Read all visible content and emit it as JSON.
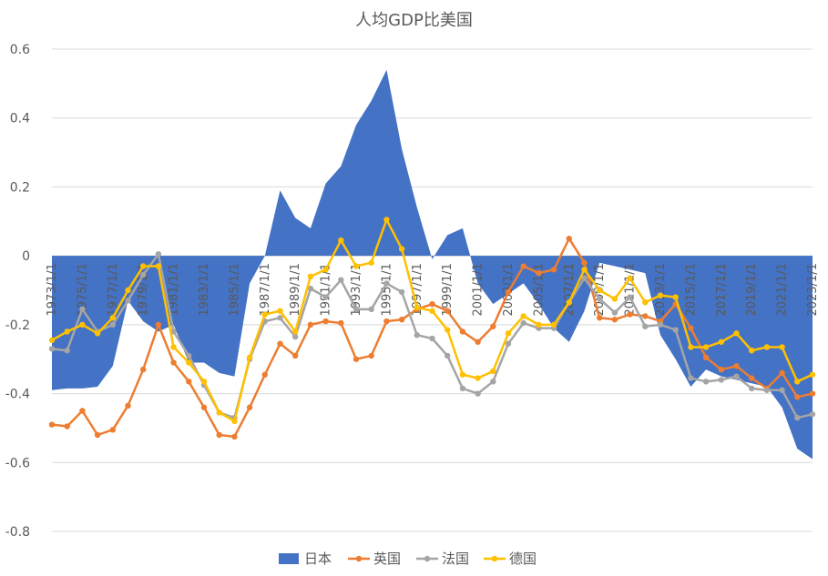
{
  "chart_data": {
    "type": "area",
    "title": "人均GDP比美国",
    "ylim": [
      -0.8,
      0.6
    ],
    "yticks": [
      -0.8,
      -0.6,
      -0.4,
      -0.2,
      0,
      0.2,
      0.4,
      0.6
    ],
    "x": [
      "1973/1/1",
      "1974/1/1",
      "1975/1/1",
      "1976/1/1",
      "1977/1/1",
      "1978/1/1",
      "1979/1/1",
      "1980/1/1",
      "1981/1/1",
      "1982/1/1",
      "1983/1/1",
      "1984/1/1",
      "1985/1/1",
      "1986/1/1",
      "1987/1/1",
      "1988/1/1",
      "1989/1/1",
      "1990/1/1",
      "1991/1/1",
      "1992/1/1",
      "1993/1/1",
      "1994/1/1",
      "1995/1/1",
      "1996/1/1",
      "1997/1/1",
      "1998/1/1",
      "1999/1/1",
      "2000/1/1",
      "2001/1/1",
      "2002/1/1",
      "2003/1/1",
      "2004/1/1",
      "2005/1/1",
      "2006/1/1",
      "2007/1/1",
      "2008/1/1",
      "2009/1/1",
      "2010/1/1",
      "2011/1/1",
      "2012/1/1",
      "2013/1/1",
      "2014/1/1",
      "2015/1/1",
      "2016/1/1",
      "2017/1/1",
      "2018/1/1",
      "2019/1/1",
      "2020/1/1",
      "2021/1/1",
      "2022/1/1",
      "2023/1/1"
    ],
    "xtick_labels": [
      "1973/1/1",
      "1975/1/1",
      "1977/1/1",
      "1979/1/1",
      "1981/1/1",
      "1983/1/1",
      "1985/1/1",
      "1987/1/1",
      "1989/1/1",
      "1991/1/1",
      "1993/1/1",
      "1995/1/1",
      "1997/1/1",
      "1999/1/1",
      "2001/1/1",
      "2003/1/1",
      "2005/1/1",
      "2007/1/1",
      "2009/1/1",
      "2011/1/1",
      "2013/1/1",
      "2015/1/1",
      "2017/1/1",
      "2019/1/1",
      "2021/1/1",
      "2023/1/1"
    ],
    "series": [
      {
        "name": "日本",
        "type": "area",
        "color": "#4472C4",
        "values": [
          -0.39,
          -0.385,
          -0.385,
          -0.38,
          -0.32,
          -0.13,
          -0.19,
          -0.22,
          -0.2,
          -0.31,
          -0.31,
          -0.34,
          -0.35,
          -0.08,
          0.0,
          0.19,
          0.11,
          0.08,
          0.21,
          0.26,
          0.38,
          0.45,
          0.54,
          0.31,
          0.14,
          -0.01,
          0.06,
          0.08,
          -0.08,
          -0.14,
          -0.11,
          -0.08,
          -0.14,
          -0.21,
          -0.25,
          -0.16,
          -0.02,
          -0.03,
          -0.04,
          -0.05,
          -0.23,
          -0.3,
          -0.38,
          -0.33,
          -0.35,
          -0.36,
          -0.37,
          -0.38,
          -0.44,
          -0.56,
          -0.59
        ]
      },
      {
        "name": "英国",
        "type": "line",
        "color": "#ED7D31",
        "values": [
          -0.49,
          -0.495,
          -0.45,
          -0.52,
          -0.505,
          -0.435,
          -0.33,
          -0.2,
          -0.31,
          -0.365,
          -0.44,
          -0.52,
          -0.525,
          -0.44,
          -0.345,
          -0.255,
          -0.29,
          -0.2,
          -0.19,
          -0.195,
          -0.3,
          -0.29,
          -0.19,
          -0.185,
          -0.155,
          -0.14,
          -0.16,
          -0.22,
          -0.25,
          -0.205,
          -0.105,
          -0.03,
          -0.05,
          -0.04,
          0.05,
          -0.02,
          -0.18,
          -0.185,
          -0.17,
          -0.175,
          -0.19,
          -0.14,
          -0.21,
          -0.295,
          -0.33,
          -0.32,
          -0.355,
          -0.385,
          -0.34,
          -0.41,
          -0.4
        ]
      },
      {
        "name": "法国",
        "type": "line",
        "color": "#A5A5A5",
        "values": [
          -0.27,
          -0.275,
          -0.155,
          -0.22,
          -0.2,
          -0.13,
          -0.055,
          0.005,
          -0.22,
          -0.29,
          -0.375,
          -0.455,
          -0.47,
          -0.3,
          -0.19,
          -0.18,
          -0.235,
          -0.095,
          -0.12,
          -0.07,
          -0.155,
          -0.155,
          -0.08,
          -0.105,
          -0.23,
          -0.24,
          -0.29,
          -0.385,
          -0.4,
          -0.365,
          -0.255,
          -0.195,
          -0.21,
          -0.21,
          -0.135,
          -0.065,
          -0.125,
          -0.165,
          -0.12,
          -0.205,
          -0.2,
          -0.215,
          -0.355,
          -0.365,
          -0.36,
          -0.35,
          -0.385,
          -0.39,
          -0.39,
          -0.47,
          -0.46
        ]
      },
      {
        "name": "德国",
        "type": "line",
        "color": "#FFC000",
        "values": [
          -0.245,
          -0.22,
          -0.2,
          -0.225,
          -0.18,
          -0.1,
          -0.03,
          -0.03,
          -0.265,
          -0.31,
          -0.365,
          -0.455,
          -0.48,
          -0.295,
          -0.17,
          -0.16,
          -0.22,
          -0.06,
          -0.04,
          0.045,
          -0.03,
          -0.02,
          0.105,
          0.02,
          -0.15,
          -0.16,
          -0.215,
          -0.345,
          -0.355,
          -0.335,
          -0.225,
          -0.175,
          -0.2,
          -0.2,
          -0.135,
          -0.04,
          -0.1,
          -0.125,
          -0.065,
          -0.135,
          -0.115,
          -0.12,
          -0.265,
          -0.265,
          -0.25,
          -0.225,
          -0.275,
          -0.265,
          -0.265,
          -0.365,
          -0.345
        ]
      }
    ],
    "legend": {
      "position": "bottom",
      "items": [
        "日本",
        "英国",
        "法国",
        "德国"
      ]
    }
  }
}
